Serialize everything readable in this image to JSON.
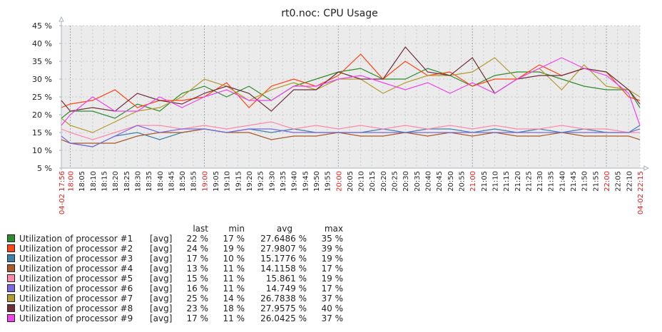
{
  "chart_data": {
    "type": "line",
    "title": "rt0.noc: CPU Usage",
    "y_unit": "%",
    "ylim": [
      5,
      45
    ],
    "yticks": [
      5,
      10,
      15,
      20,
      25,
      30,
      35,
      40,
      45
    ],
    "grid": true,
    "xlim": [
      "17:56",
      "22:15"
    ],
    "x_start_label": "04-02 17:56",
    "x_end_label": "04-02 22:15",
    "xtick_interval_minutes": 5,
    "x": [
      "17:56",
      "18:00",
      "18:10",
      "18:20",
      "18:30",
      "18:40",
      "18:50",
      "19:00",
      "19:10",
      "19:20",
      "19:30",
      "19:40",
      "19:50",
      "20:00",
      "20:10",
      "20:20",
      "20:30",
      "20:40",
      "20:50",
      "21:00",
      "21:10",
      "21:20",
      "21:30",
      "21:40",
      "21:50",
      "22:00",
      "22:10",
      "22:15"
    ],
    "legend_headers": {
      "last": "last",
      "min": "min",
      "avg": "avg",
      "max": "max"
    },
    "series": [
      {
        "name": "Utilization of processor #1",
        "func": "[avg]",
        "color": "#2e8b2e",
        "last": "22 %",
        "min": "17 %",
        "avg": "27.6486 %",
        "max": "35 %",
        "values": [
          19,
          21,
          21,
          19,
          23,
          21,
          26,
          28,
          25,
          28,
          24,
          28,
          30,
          32,
          33,
          30,
          30,
          33,
          31,
          28,
          31,
          32,
          32,
          30,
          28,
          27,
          27,
          22
        ]
      },
      {
        "name": "Utilization of processor #2",
        "func": "[avg]",
        "color": "#ff4414",
        "last": "24 %",
        "min": "19 %",
        "avg": "27.9807 %",
        "max": "39 %",
        "values": [
          22,
          23,
          24,
          27,
          22,
          24,
          24,
          25,
          29,
          22,
          28,
          30,
          28,
          31,
          37,
          30,
          35,
          31,
          32,
          28,
          30,
          30,
          34,
          31,
          33,
          32,
          25,
          24
        ]
      },
      {
        "name": "Utilization of processor #3",
        "func": "[avg]",
        "color": "#3f80aa",
        "last": "17 %",
        "min": "10 %",
        "avg": "15.1776 %",
        "max": "19 %",
        "values": [
          13,
          12,
          11,
          14,
          15,
          13,
          15,
          16,
          15,
          16,
          15,
          16,
          15,
          15,
          15,
          16,
          15,
          16,
          16,
          15,
          16,
          15,
          16,
          15,
          16,
          15,
          15,
          17
        ]
      },
      {
        "name": "Utilization of processor #4",
        "func": "[avg]",
        "color": "#a85a2a",
        "last": "13 %",
        "min": "11 %",
        "avg": "14.1158 %",
        "max": "17 %",
        "values": [
          13,
          12,
          12,
          12,
          14,
          15,
          15,
          16,
          15,
          15,
          13,
          14,
          14,
          15,
          14,
          14,
          15,
          14,
          15,
          14,
          15,
          14,
          14,
          15,
          14,
          14,
          14,
          13
        ]
      },
      {
        "name": "Utilization of processor #5",
        "func": "[avg]",
        "color": "#ff88aa",
        "last": "15 %",
        "min": "11 %",
        "avg": "15.861 %",
        "max": "19 %",
        "values": [
          16,
          15,
          13,
          15,
          17,
          17,
          16,
          17,
          16,
          17,
          18,
          16,
          17,
          16,
          17,
          16,
          17,
          16,
          17,
          16,
          17,
          16,
          16,
          17,
          16,
          16,
          15,
          15
        ]
      },
      {
        "name": "Utilization of processor #6",
        "func": "[avg]",
        "color": "#7b68dd",
        "last": "16 %",
        "min": "11 %",
        "avg": "14.749 %",
        "max": "17 %",
        "values": [
          14,
          12,
          11,
          14,
          17,
          15,
          16,
          16,
          15,
          16,
          16,
          15,
          15,
          15,
          15,
          15,
          15,
          15,
          15,
          15,
          15,
          15,
          15,
          15,
          15,
          15,
          15,
          16
        ]
      },
      {
        "name": "Utilization of processor #7",
        "func": "[avg]",
        "color": "#b39a2e",
        "last": "25 %",
        "min": "14 %",
        "avg": "26.7838 %",
        "max": "37 %",
        "values": [
          19,
          17,
          15,
          18,
          21,
          22,
          25,
          30,
          28,
          24,
          27,
          29,
          27,
          30,
          30,
          26,
          29,
          31,
          31,
          32,
          36,
          30,
          33,
          27,
          34,
          28,
          27,
          25
        ]
      },
      {
        "name": "Utilization of processor #8",
        "func": "[avg]",
        "color": "#6e3038",
        "last": "23 %",
        "min": "18 %",
        "avg": "27.9575 %",
        "max": "40 %",
        "values": [
          24,
          21,
          22,
          21,
          26,
          24,
          23,
          26,
          28,
          26,
          21,
          27,
          27,
          32,
          30,
          30,
          39,
          32,
          31,
          36,
          26,
          30,
          31,
          31,
          33,
          32,
          27,
          23
        ]
      },
      {
        "name": "Utilization of processor #9",
        "func": "[avg]",
        "color": "#ee44ee",
        "last": "17 %",
        "min": "11 %",
        "avg": "26.0425 %",
        "max": "37 %",
        "values": [
          17,
          20,
          25,
          21,
          21,
          25,
          22,
          25,
          27,
          24,
          24,
          28,
          28,
          30,
          31,
          29,
          27,
          29,
          26,
          29,
          26,
          30,
          33,
          36,
          33,
          31,
          26,
          17
        ]
      }
    ]
  }
}
